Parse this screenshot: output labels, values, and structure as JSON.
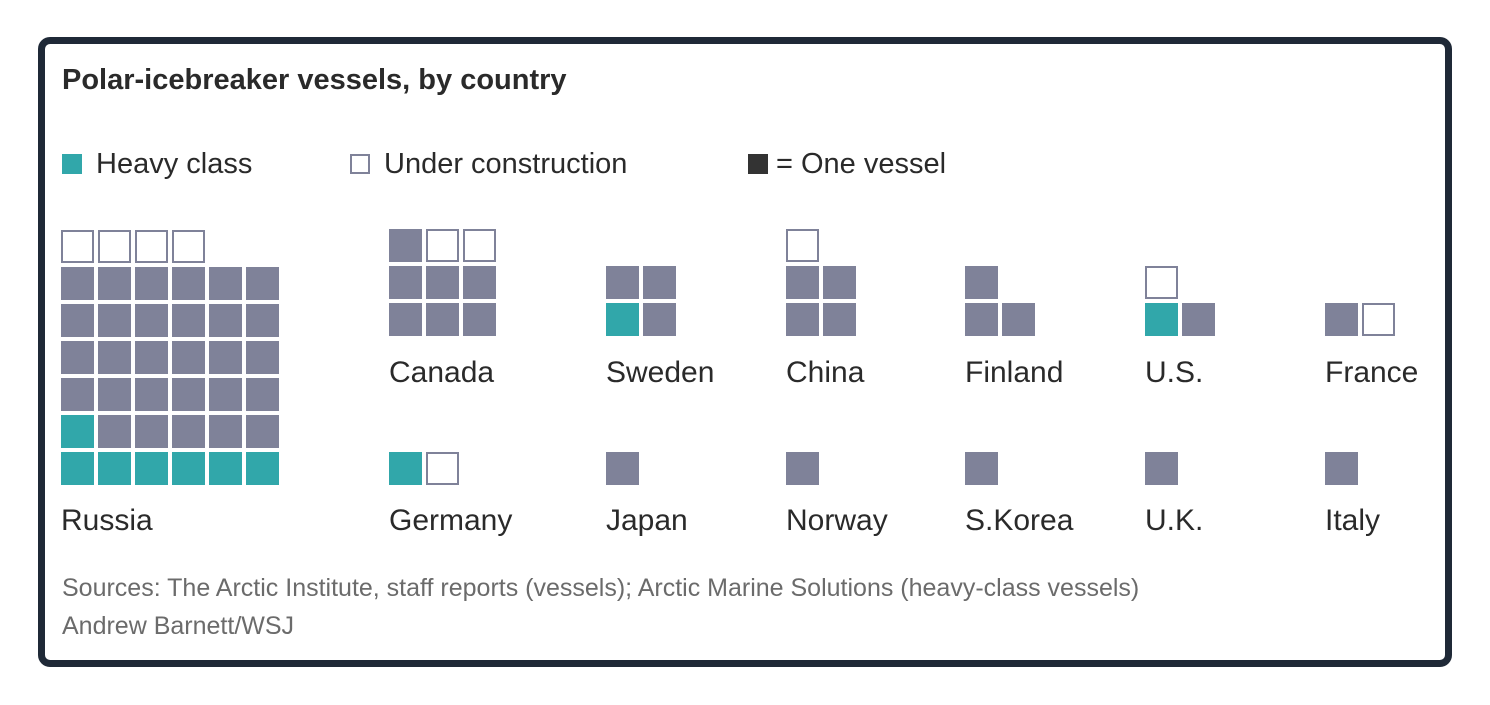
{
  "title": "Polar-icebreaker vessels, by country",
  "legend": [
    {
      "key": "heavy",
      "label": "Heavy class",
      "color": "#31a7aa"
    },
    {
      "key": "construction",
      "label": "Under construction",
      "color": "#ffffff"
    },
    {
      "key": "unit",
      "label": "= One vessel",
      "color": "#333333"
    }
  ],
  "colors": {
    "operational": "#7f8299",
    "heavy": "#31a7aa",
    "construction_border": "#7f8299",
    "frame": "#1f2937"
  },
  "chart_data": {
    "type": "waffle",
    "unit": "One vessel",
    "series": [
      "operational",
      "heavy",
      "under_construction"
    ],
    "countries": [
      {
        "name": "Russia",
        "operational": 29,
        "heavy": 7,
        "under_construction": 4
      },
      {
        "name": "Canada",
        "operational": 7,
        "heavy": 0,
        "under_construction": 2
      },
      {
        "name": "Sweden",
        "operational": 3,
        "heavy": 1,
        "under_construction": 0
      },
      {
        "name": "China",
        "operational": 4,
        "heavy": 0,
        "under_construction": 1
      },
      {
        "name": "Finland",
        "operational": 3,
        "heavy": 0,
        "under_construction": 0
      },
      {
        "name": "U.S.",
        "operational": 1,
        "heavy": 1,
        "under_construction": 1
      },
      {
        "name": "France",
        "operational": 1,
        "heavy": 0,
        "under_construction": 1
      },
      {
        "name": "Germany",
        "operational": 0,
        "heavy": 1,
        "under_construction": 1
      },
      {
        "name": "Japan",
        "operational": 1,
        "heavy": 0,
        "under_construction": 0
      },
      {
        "name": "Norway",
        "operational": 1,
        "heavy": 0,
        "under_construction": 0
      },
      {
        "name": "S.Korea",
        "operational": 1,
        "heavy": 0,
        "under_construction": 0
      },
      {
        "name": "U.K.",
        "operational": 1,
        "heavy": 0,
        "under_construction": 0
      },
      {
        "name": "Italy",
        "operational": 1,
        "heavy": 0,
        "under_construction": 0
      }
    ]
  },
  "footer": {
    "source": "Sources: The Arctic Institute, staff reports (vessels); Arctic Marine Solutions (heavy-class vessels)",
    "credit": "Andrew Barnett/WSJ"
  }
}
